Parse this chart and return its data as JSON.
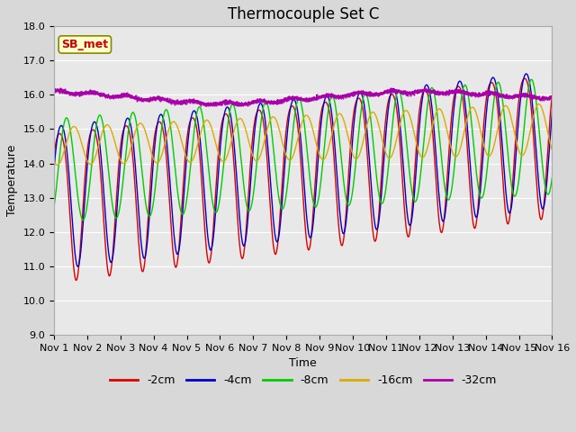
{
  "title": "Thermocouple Set C",
  "xlabel": "Time",
  "ylabel": "Temperature",
  "ylim": [
    9.0,
    18.0
  ],
  "xlim": [
    0,
    15
  ],
  "yticks": [
    9.0,
    10.0,
    11.0,
    12.0,
    13.0,
    14.0,
    15.0,
    16.0,
    17.0,
    18.0
  ],
  "xtick_labels": [
    "Nov 1",
    "Nov 2",
    "Nov 3",
    "Nov 4",
    "Nov 5",
    "Nov 6",
    "Nov 7",
    "Nov 8",
    "Nov 9",
    "Nov 10",
    "Nov 11",
    "Nov 12",
    "Nov 13",
    "Nov 14",
    "Nov 15",
    "Nov 16"
  ],
  "colors": {
    "-2cm": "#dd0000",
    "-4cm": "#0000cc",
    "-8cm": "#00cc00",
    "-16cm": "#ddaa00",
    "-32cm": "#aa00aa"
  },
  "annotation_text": "SB_met",
  "annotation_color": "#cc0000",
  "annotation_bg": "#ffffcc",
  "plot_bg": "#e8e8e8",
  "fig_bg": "#d8d8d8",
  "title_fontsize": 12,
  "axis_fontsize": 9,
  "tick_fontsize": 8,
  "grid_color": "#ffffff"
}
